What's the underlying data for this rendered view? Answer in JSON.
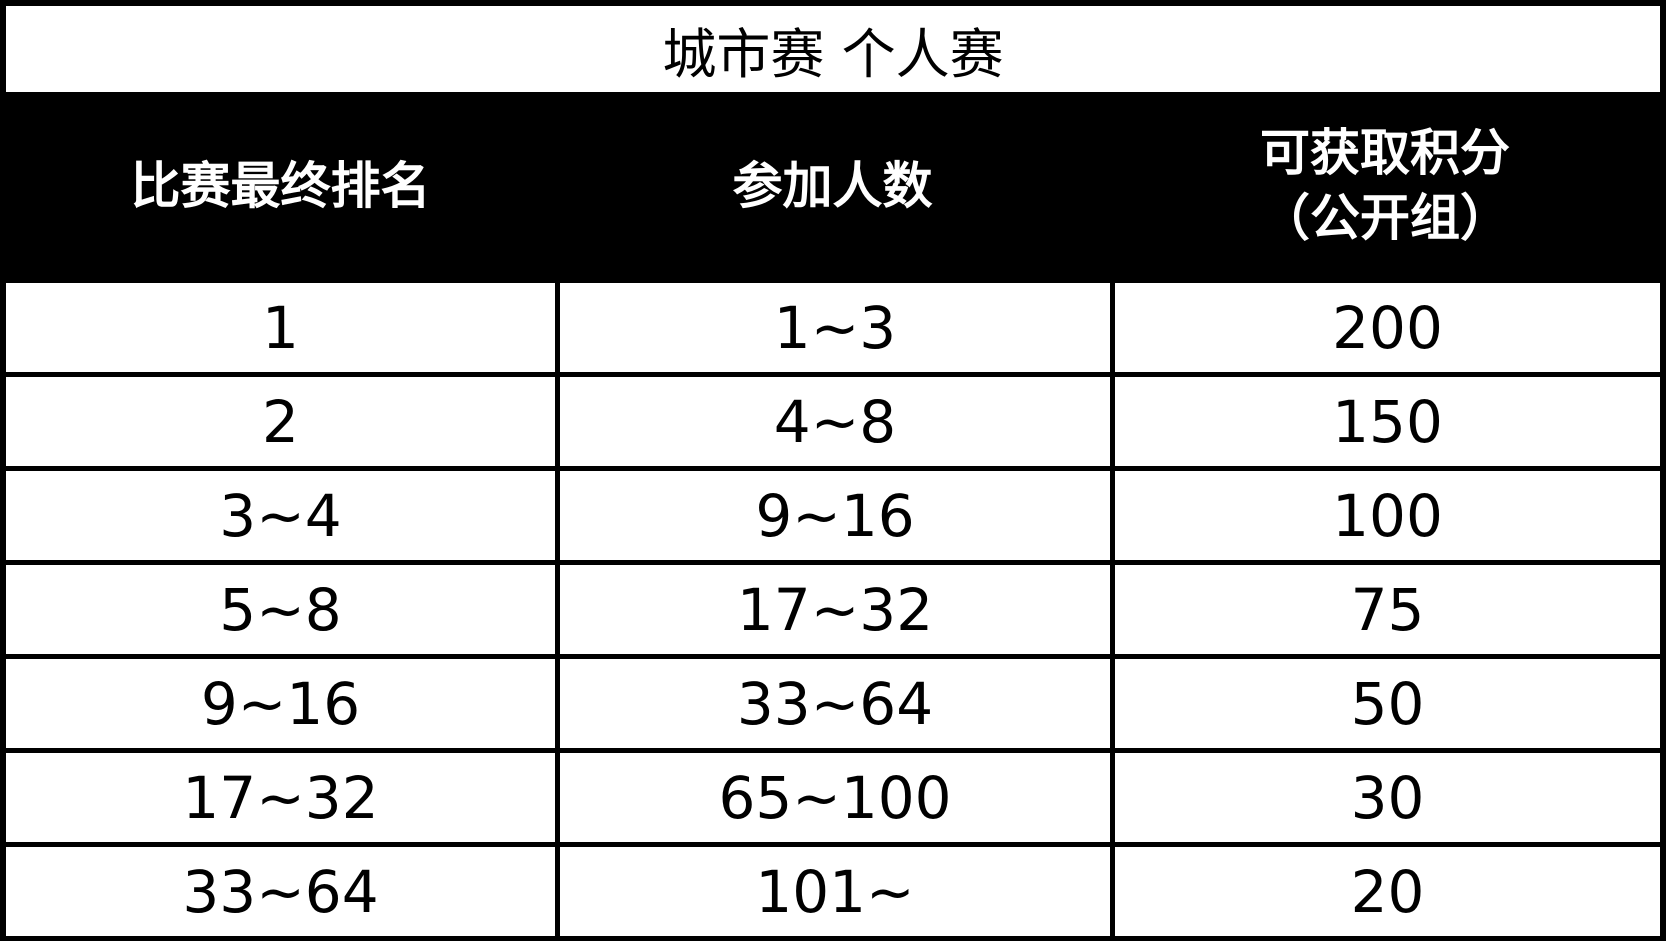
{
  "title": "城市赛 个人赛",
  "columns": [
    "比赛最终排名",
    "参加人数",
    "可获取积分\n（公开组）"
  ],
  "rows": [
    [
      "1",
      "1~3",
      "200"
    ],
    [
      "2",
      "4~8",
      "150"
    ],
    [
      "3~4",
      "9~16",
      "100"
    ],
    [
      "5~8",
      "17~32",
      "75"
    ],
    [
      "9~16",
      "33~64",
      "50"
    ],
    [
      "17~32",
      "65~100",
      "30"
    ],
    [
      "33~64",
      "101~",
      "20"
    ]
  ]
}
